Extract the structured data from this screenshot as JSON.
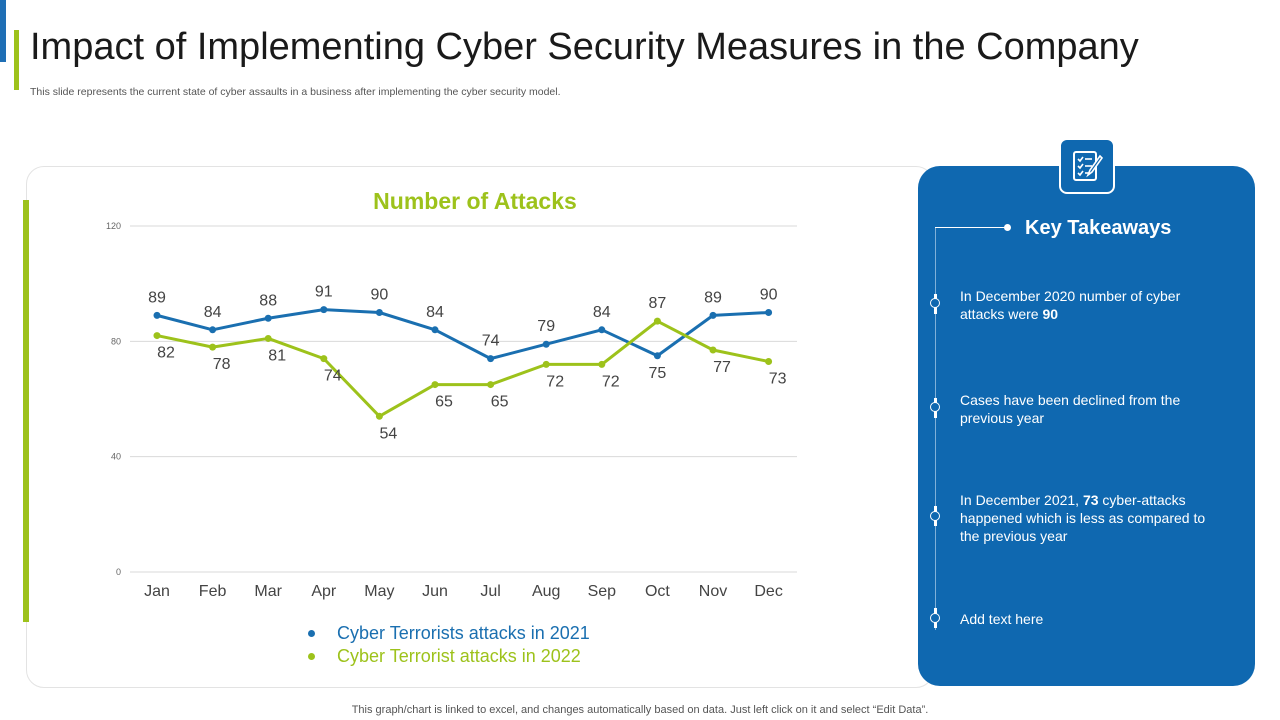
{
  "header": {
    "title": "Impact of Implementing Cyber Security Measures in the Company",
    "subtitle": "This slide represents the current state of cyber  assaults in a business after implementing the cyber security model."
  },
  "colors": {
    "blue": "#1a6fb0",
    "green": "#9dc21b",
    "panel": "#0f68b0"
  },
  "chart_data": {
    "type": "line",
    "title": "Number of  Attacks",
    "categories": [
      "Jan",
      "Feb",
      "Mar",
      "Apr",
      "May",
      "Jun",
      "Jul",
      "Aug",
      "Sep",
      "Oct",
      "Nov",
      "Dec"
    ],
    "yticks": [
      0,
      40,
      80,
      120
    ],
    "ylim": [
      0,
      120
    ],
    "grid": true,
    "legend_position": "bottom",
    "series": [
      {
        "name": "Cyber Terrorists attacks in 2021",
        "color": "#1a6fb0",
        "values": [
          89,
          84,
          88,
          91,
          90,
          84,
          74,
          79,
          84,
          75,
          89,
          90
        ]
      },
      {
        "name": "Cyber Terrorist attacks in 2022",
        "color": "#9dc21b",
        "values": [
          82,
          78,
          81,
          74,
          54,
          65,
          65,
          72,
          72,
          87,
          77,
          73
        ]
      }
    ]
  },
  "panel": {
    "icon": "checklist-icon",
    "title": "Key Takeaways",
    "item1_pre": "In December 2020 number of cyber attacks were ",
    "item1_bold": "90",
    "item2": "Cases have been declined from the previous year",
    "item3_pre": "In December 2021, ",
    "item3_bold": "73",
    "item3_post": " cyber-attacks happened which is less as compared to the previous year",
    "item4": "Add text here"
  },
  "footer": {
    "text": "This graph/chart is linked to excel,  and changes automatically based on data. Just left click on it and select “Edit Data”."
  }
}
